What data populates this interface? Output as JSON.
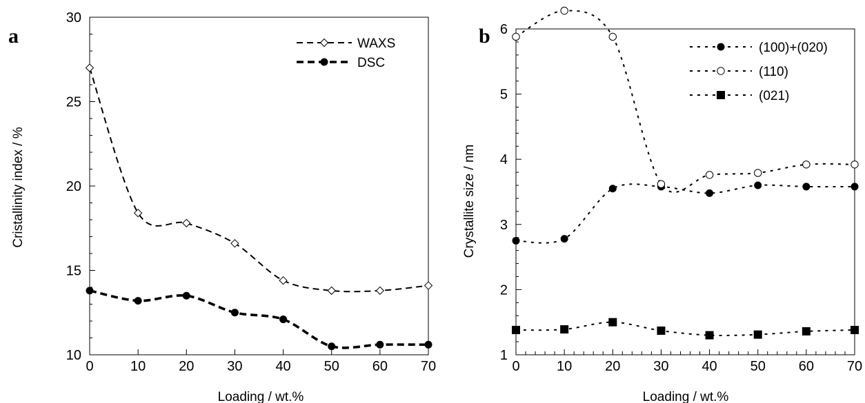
{
  "chart_data": [
    {
      "type": "line",
      "panel_label": "a",
      "title": "",
      "xlabel": "Loading / wt.%",
      "ylabel": "Cristallinity index / %",
      "xlim": [
        0,
        70
      ],
      "ylim": [
        10,
        30
      ],
      "xticks": [
        0,
        10,
        20,
        30,
        40,
        50,
        60,
        70
      ],
      "yticks": [
        10,
        15,
        20,
        25,
        30
      ],
      "grid": false,
      "legend_position": "top-right",
      "series": [
        {
          "name": "WAXS",
          "marker": "open-diamond",
          "line": "dashed",
          "x": [
            0,
            10,
            20,
            30,
            40,
            50,
            60,
            70
          ],
          "y": [
            27.0,
            18.4,
            17.8,
            16.6,
            14.4,
            13.8,
            13.8,
            14.1
          ]
        },
        {
          "name": "DSC",
          "marker": "filled-circle",
          "line": "bold-dashed",
          "x": [
            0,
            10,
            20,
            30,
            40,
            50,
            60,
            70
          ],
          "y": [
            13.8,
            13.2,
            13.5,
            12.5,
            12.1,
            10.5,
            10.6,
            10.6
          ]
        }
      ]
    },
    {
      "type": "line",
      "panel_label": "b",
      "title": "",
      "xlabel": "Loading / wt.%",
      "ylabel": "Crystallite size / nm",
      "xlim": [
        0,
        70
      ],
      "ylim": [
        1,
        6
      ],
      "xticks": [
        0,
        10,
        20,
        30,
        40,
        50,
        60,
        70
      ],
      "yticks": [
        1,
        2,
        3,
        4,
        5,
        6
      ],
      "grid": false,
      "legend_position": "top-right",
      "series": [
        {
          "name": "(100)+(020)",
          "marker": "filled-circle",
          "line": "dotted",
          "x": [
            0,
            10,
            20,
            30,
            40,
            50,
            60,
            70
          ],
          "y": [
            2.75,
            2.78,
            3.55,
            3.58,
            3.48,
            3.6,
            3.58,
            3.58
          ]
        },
        {
          "name": "(110)",
          "marker": "open-circle",
          "line": "dotted",
          "x": [
            0,
            10,
            20,
            30,
            40,
            50,
            60,
            70
          ],
          "y": [
            5.88,
            6.28,
            5.88,
            3.62,
            3.76,
            3.79,
            3.92,
            3.92
          ]
        },
        {
          "name": "(021)",
          "marker": "filled-square",
          "line": "dotted",
          "x": [
            0,
            10,
            20,
            30,
            40,
            50,
            60,
            70
          ],
          "y": [
            1.38,
            1.39,
            1.5,
            1.37,
            1.3,
            1.31,
            1.36,
            1.38
          ]
        }
      ]
    }
  ]
}
